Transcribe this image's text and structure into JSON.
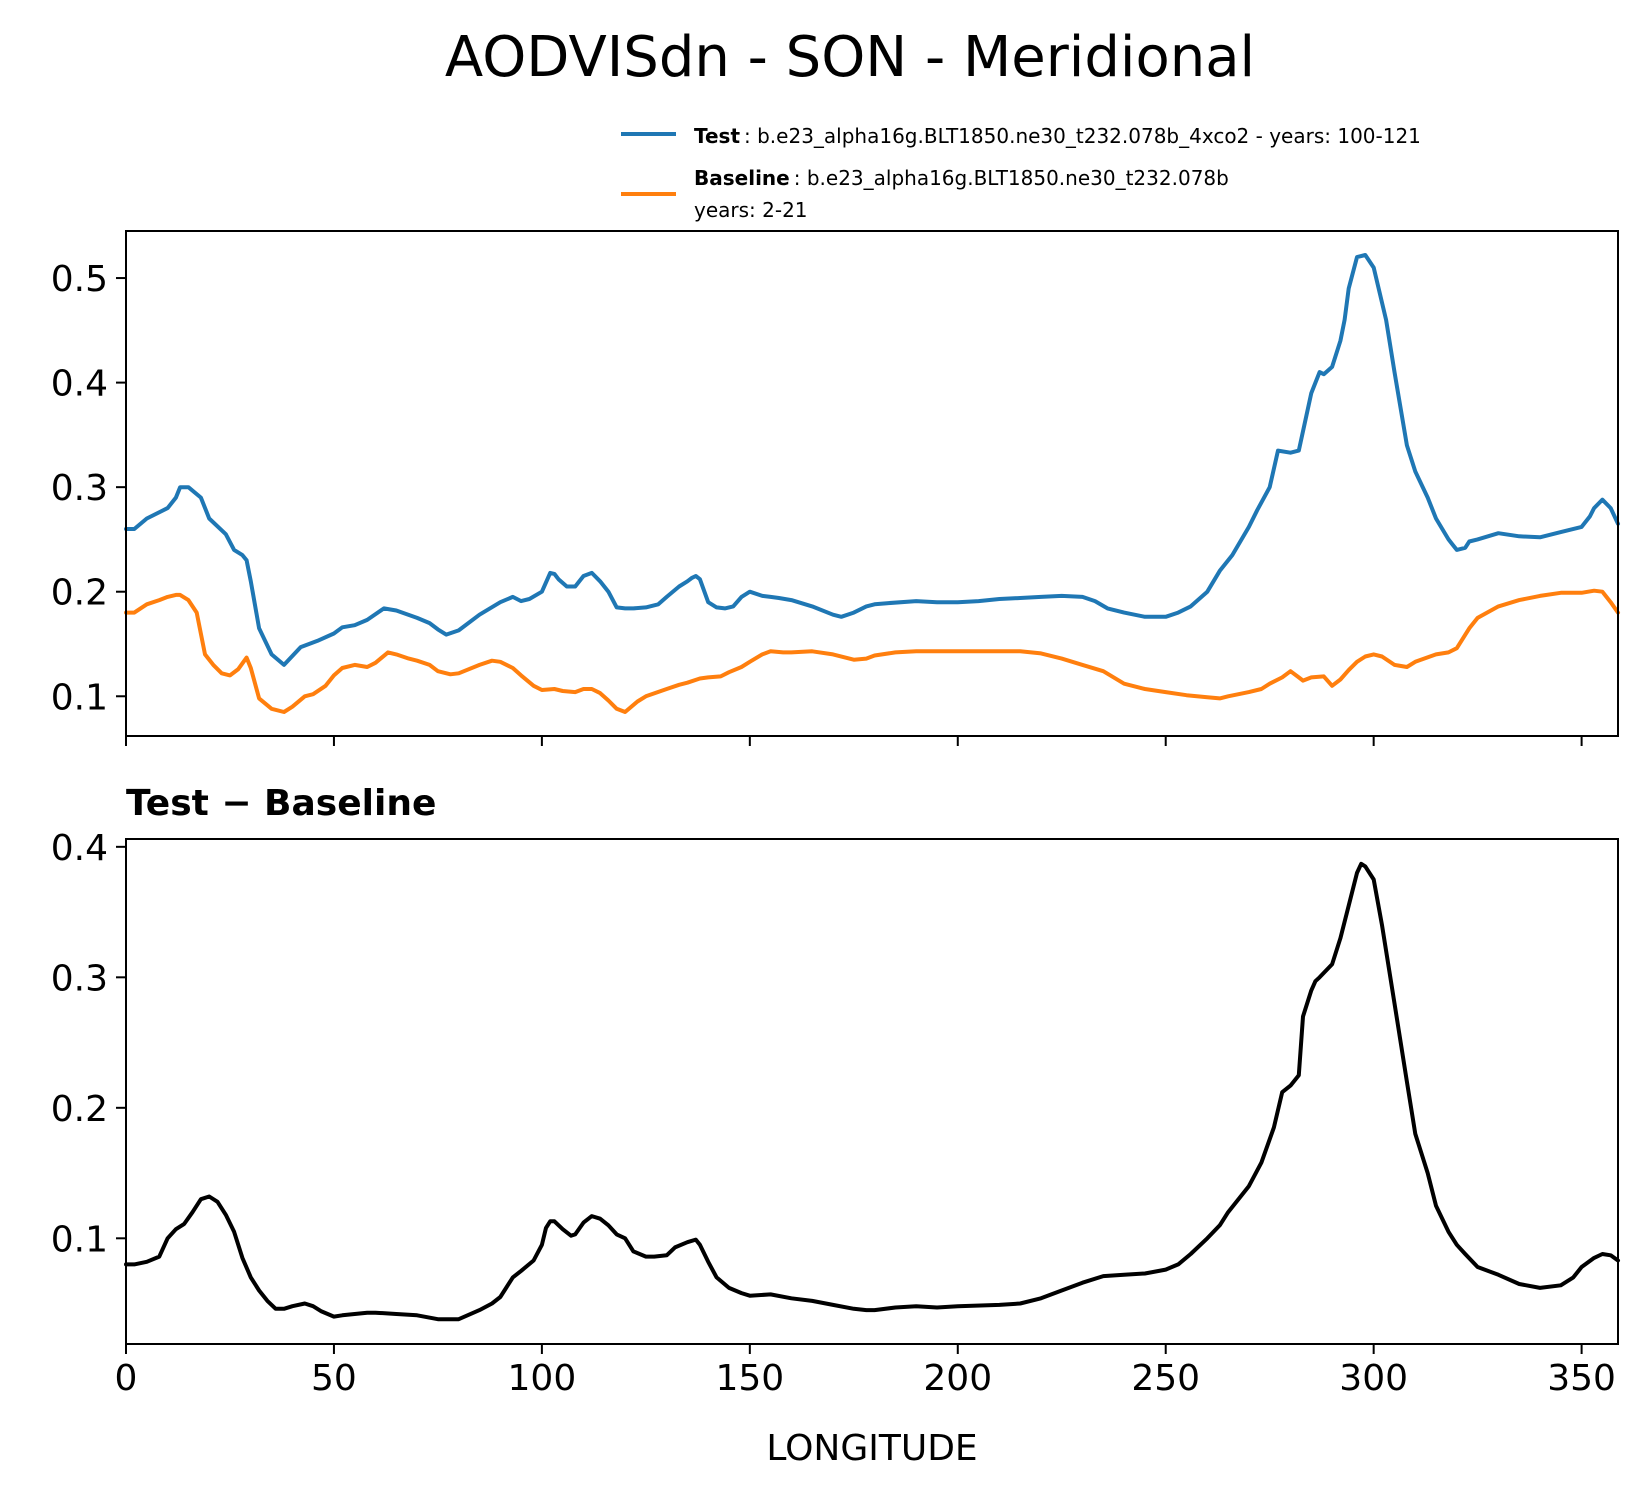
{
  "figure": {
    "title": "AODVISdn - SON - Meridional"
  },
  "legend": {
    "test_bold": "Test",
    "test_text": ": b.e23_alpha16g.BLT1850.ne30_t232.078b_4xco2 - years: 100-121",
    "baseline_bold": "Baseline",
    "baseline_text": ": b.e23_alpha16g.BLT1850.ne30_t232.078b",
    "baseline_text2": "years: 2-21"
  },
  "colors": {
    "test": "#1f77b4",
    "baseline": "#ff7f0e",
    "diff": "#000000"
  },
  "chart_data": [
    {
      "type": "line",
      "title": "",
      "xlabel": "",
      "ylabel": "",
      "xlim": [
        0,
        358.75
      ],
      "ylim": [
        0.062,
        0.545
      ],
      "xticks": [
        0,
        50,
        100,
        150,
        200,
        250,
        300,
        350
      ],
      "yticks": [
        0.1,
        0.2,
        0.3,
        0.4,
        0.5
      ],
      "ytick_labels": [
        "0.1",
        "0.2",
        "0.3",
        "0.4",
        "0.5"
      ],
      "grid": false,
      "legend_position": "above-right",
      "series": [
        {
          "name": "Test",
          "color_key": "test",
          "x": [
            0,
            2,
            5,
            10,
            12,
            13,
            15,
            18,
            20,
            24,
            26,
            28,
            29,
            30,
            32,
            35,
            38,
            42,
            46,
            50,
            52,
            55,
            58,
            62,
            65,
            70,
            73,
            75,
            77,
            80,
            85,
            90,
            93,
            95,
            97,
            100,
            102,
            103,
            104,
            106,
            108,
            110,
            112,
            114,
            116,
            118,
            120,
            122,
            125,
            128,
            130,
            133,
            135,
            136,
            137,
            138,
            140,
            142,
            144,
            146,
            148,
            150,
            153,
            155,
            157,
            160,
            165,
            170,
            172,
            175,
            178,
            180,
            183,
            190,
            195,
            200,
            205,
            210,
            215,
            220,
            225,
            230,
            233,
            236,
            240,
            245,
            250,
            253,
            256,
            260,
            263,
            266,
            270,
            272,
            275,
            277,
            280,
            282,
            285,
            287,
            288,
            290,
            292,
            293,
            294,
            296,
            298,
            300,
            303,
            305,
            308,
            310,
            313,
            315,
            318,
            319,
            320,
            322,
            323,
            325,
            330,
            335,
            340,
            345,
            350,
            352,
            353,
            355,
            357,
            358.75
          ],
          "y": [
            0.26,
            0.26,
            0.27,
            0.28,
            0.29,
            0.3,
            0.3,
            0.29,
            0.27,
            0.255,
            0.24,
            0.235,
            0.23,
            0.21,
            0.165,
            0.14,
            0.13,
            0.147,
            0.153,
            0.16,
            0.166,
            0.168,
            0.173,
            0.184,
            0.182,
            0.175,
            0.17,
            0.164,
            0.159,
            0.163,
            0.178,
            0.19,
            0.195,
            0.191,
            0.193,
            0.2,
            0.218,
            0.217,
            0.212,
            0.205,
            0.205,
            0.215,
            0.218,
            0.21,
            0.2,
            0.185,
            0.184,
            0.184,
            0.185,
            0.188,
            0.195,
            0.205,
            0.21,
            0.213,
            0.215,
            0.212,
            0.19,
            0.185,
            0.184,
            0.186,
            0.195,
            0.2,
            0.196,
            0.195,
            0.194,
            0.192,
            0.186,
            0.178,
            0.176,
            0.18,
            0.186,
            0.188,
            0.189,
            0.191,
            0.19,
            0.19,
            0.191,
            0.193,
            0.194,
            0.195,
            0.196,
            0.195,
            0.191,
            0.184,
            0.18,
            0.176,
            0.176,
            0.18,
            0.186,
            0.2,
            0.22,
            0.235,
            0.262,
            0.278,
            0.3,
            0.335,
            0.333,
            0.335,
            0.39,
            0.41,
            0.408,
            0.415,
            0.44,
            0.46,
            0.49,
            0.52,
            0.522,
            0.51,
            0.46,
            0.41,
            0.34,
            0.315,
            0.29,
            0.27,
            0.25,
            0.245,
            0.24,
            0.242,
            0.248,
            0.25,
            0.256,
            0.253,
            0.252,
            0.257,
            0.262,
            0.272,
            0.28,
            0.288,
            0.28,
            0.265
          ]
        },
        {
          "name": "Baseline",
          "color_key": "baseline",
          "x": [
            0,
            2,
            5,
            8,
            10,
            12,
            13,
            15,
            17,
            19,
            21,
            23,
            25,
            27,
            29,
            30,
            32,
            35,
            38,
            40,
            43,
            45,
            48,
            50,
            52,
            55,
            58,
            60,
            63,
            65,
            68,
            70,
            73,
            75,
            78,
            80,
            85,
            88,
            90,
            93,
            95,
            98,
            100,
            103,
            105,
            108,
            110,
            112,
            114,
            116,
            118,
            120,
            123,
            125,
            130,
            133,
            135,
            138,
            140,
            143,
            145,
            148,
            150,
            153,
            155,
            158,
            160,
            165,
            170,
            175,
            178,
            180,
            185,
            190,
            195,
            200,
            205,
            210,
            215,
            220,
            225,
            230,
            235,
            240,
            245,
            250,
            255,
            260,
            263,
            265,
            270,
            273,
            275,
            278,
            280,
            282,
            283,
            285,
            288,
            290,
            292,
            294,
            296,
            298,
            300,
            302,
            305,
            308,
            310,
            315,
            318,
            320,
            323,
            325,
            330,
            335,
            340,
            345,
            350,
            353,
            355,
            357,
            358.75
          ],
          "y": [
            0.18,
            0.18,
            0.188,
            0.192,
            0.195,
            0.197,
            0.197,
            0.192,
            0.18,
            0.14,
            0.13,
            0.122,
            0.12,
            0.126,
            0.137,
            0.127,
            0.098,
            0.088,
            0.085,
            0.09,
            0.1,
            0.102,
            0.11,
            0.12,
            0.127,
            0.13,
            0.128,
            0.132,
            0.142,
            0.14,
            0.136,
            0.134,
            0.13,
            0.124,
            0.121,
            0.122,
            0.13,
            0.134,
            0.133,
            0.127,
            0.12,
            0.11,
            0.106,
            0.107,
            0.105,
            0.104,
            0.107,
            0.107,
            0.103,
            0.096,
            0.088,
            0.085,
            0.095,
            0.1,
            0.107,
            0.111,
            0.113,
            0.117,
            0.118,
            0.119,
            0.123,
            0.128,
            0.133,
            0.14,
            0.143,
            0.142,
            0.142,
            0.143,
            0.14,
            0.135,
            0.136,
            0.139,
            0.142,
            0.143,
            0.143,
            0.143,
            0.143,
            0.143,
            0.143,
            0.141,
            0.136,
            0.13,
            0.124,
            0.112,
            0.107,
            0.104,
            0.101,
            0.099,
            0.098,
            0.1,
            0.104,
            0.107,
            0.112,
            0.118,
            0.124,
            0.118,
            0.115,
            0.118,
            0.119,
            0.11,
            0.116,
            0.125,
            0.133,
            0.138,
            0.14,
            0.138,
            0.13,
            0.128,
            0.133,
            0.14,
            0.142,
            0.146,
            0.165,
            0.175,
            0.186,
            0.192,
            0.196,
            0.199,
            0.199,
            0.201,
            0.2,
            0.19,
            0.18
          ]
        }
      ]
    },
    {
      "type": "line",
      "title": "Test − Baseline",
      "xlabel": "LONGITUDE",
      "ylabel": "",
      "xlim": [
        0,
        358.75
      ],
      "ylim": [
        0.019,
        0.406
      ],
      "xticks": [
        0,
        50,
        100,
        150,
        200,
        250,
        300,
        350
      ],
      "xtick_labels": [
        "0",
        "50",
        "100",
        "150",
        "200",
        "250",
        "300",
        "350"
      ],
      "yticks": [
        0.1,
        0.2,
        0.3,
        0.4
      ],
      "ytick_labels": [
        "0.1",
        "0.2",
        "0.3",
        "0.4"
      ],
      "grid": false,
      "series": [
        {
          "color_key": "diff",
          "x": [
            0,
            2,
            5,
            8,
            10,
            12,
            14,
            16,
            18,
            20,
            22,
            24,
            26,
            28,
            30,
            32,
            34,
            36,
            38,
            40,
            43,
            45,
            47,
            50,
            52,
            55,
            58,
            60,
            65,
            70,
            75,
            80,
            85,
            88,
            90,
            93,
            95,
            98,
            100,
            101,
            102,
            103,
            105,
            107,
            108,
            110,
            112,
            114,
            116,
            118,
            120,
            122,
            125,
            127,
            130,
            132,
            135,
            137,
            138,
            140,
            142,
            145,
            148,
            150,
            155,
            160,
            165,
            170,
            175,
            178,
            180,
            185,
            190,
            195,
            200,
            210,
            215,
            220,
            225,
            230,
            235,
            240,
            245,
            250,
            253,
            256,
            260,
            263,
            265,
            270,
            273,
            276,
            278,
            280,
            282,
            283,
            285,
            286,
            287,
            290,
            292,
            294,
            296,
            297,
            298,
            300,
            302,
            305,
            308,
            310,
            313,
            315,
            318,
            320,
            322,
            325,
            330,
            335,
            340,
            345,
            348,
            350,
            353,
            355,
            357,
            358.75
          ],
          "y": [
            0.08,
            0.08,
            0.082,
            0.086,
            0.1,
            0.107,
            0.111,
            0.12,
            0.13,
            0.132,
            0.128,
            0.118,
            0.105,
            0.085,
            0.07,
            0.06,
            0.052,
            0.046,
            0.046,
            0.048,
            0.05,
            0.048,
            0.044,
            0.04,
            0.041,
            0.042,
            0.043,
            0.043,
            0.042,
            0.041,
            0.038,
            0.038,
            0.045,
            0.05,
            0.055,
            0.07,
            0.075,
            0.083,
            0.095,
            0.108,
            0.113,
            0.113,
            0.107,
            0.102,
            0.103,
            0.112,
            0.117,
            0.115,
            0.11,
            0.103,
            0.1,
            0.09,
            0.086,
            0.086,
            0.087,
            0.093,
            0.097,
            0.099,
            0.095,
            0.082,
            0.07,
            0.062,
            0.058,
            0.056,
            0.057,
            0.054,
            0.052,
            0.049,
            0.046,
            0.045,
            0.045,
            0.047,
            0.048,
            0.047,
            0.048,
            0.049,
            0.05,
            0.054,
            0.06,
            0.066,
            0.071,
            0.072,
            0.073,
            0.076,
            0.08,
            0.088,
            0.1,
            0.11,
            0.12,
            0.14,
            0.158,
            0.185,
            0.212,
            0.217,
            0.225,
            0.27,
            0.29,
            0.297,
            0.3,
            0.31,
            0.33,
            0.355,
            0.38,
            0.387,
            0.385,
            0.375,
            0.34,
            0.28,
            0.22,
            0.18,
            0.15,
            0.125,
            0.105,
            0.095,
            0.088,
            0.078,
            0.072,
            0.065,
            0.062,
            0.064,
            0.07,
            0.078,
            0.085,
            0.088,
            0.087,
            0.083
          ]
        }
      ]
    }
  ]
}
